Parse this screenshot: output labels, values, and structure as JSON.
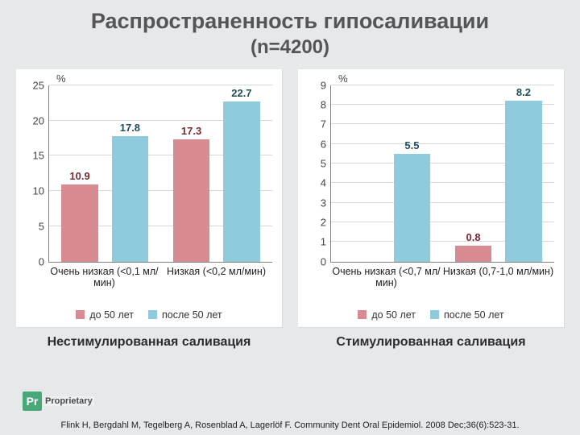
{
  "title_line1": "Распространенность гипосаливации",
  "title_line2": "(n=4200)",
  "y_unit": "%",
  "legend": {
    "a": {
      "label": "до 50 лет",
      "color": "#d98b94"
    },
    "b": {
      "label": "после 50 лет",
      "color": "#8fcbdc"
    }
  },
  "panels": [
    {
      "caption": "Нестимулированная саливация",
      "ymax": 25,
      "ytick_step": 5,
      "categories": [
        "Очень низкая (<0,1 мл/мин)",
        "Низкая (<0,2 мл/мин)"
      ],
      "series_a": [
        10.9,
        17.3
      ],
      "series_b": [
        17.8,
        22.7
      ],
      "bar_gap": 0.06,
      "group_gap": 0.22,
      "value_colors": {
        "a": "#7a2a30",
        "b": "#1f4e5c"
      }
    },
    {
      "caption": "Стимулированная саливация",
      "ymax": 9,
      "ytick_step": 1,
      "categories": [
        "Очень низкая (<0,7 мл/мин)",
        "Низкая (0,7-1,0 мл/мин)"
      ],
      "series_a": [
        null,
        0.8
      ],
      "series_b": [
        5.5,
        8.2
      ],
      "bar_gap": 0.06,
      "group_gap": 0.22,
      "value_colors": {
        "a": "#7a2a30",
        "b": "#1f4e5c"
      }
    }
  ],
  "citation": "Flink H, Bergdahl M, Tegelberg A, Rosenblad A, Lagerlöf F. Community Dent Oral Epidemiol. 2008 Dec;36(6):523-31.",
  "badge": {
    "mark": "Pr",
    "text": "Proprietary",
    "bg": "#49a87a"
  }
}
